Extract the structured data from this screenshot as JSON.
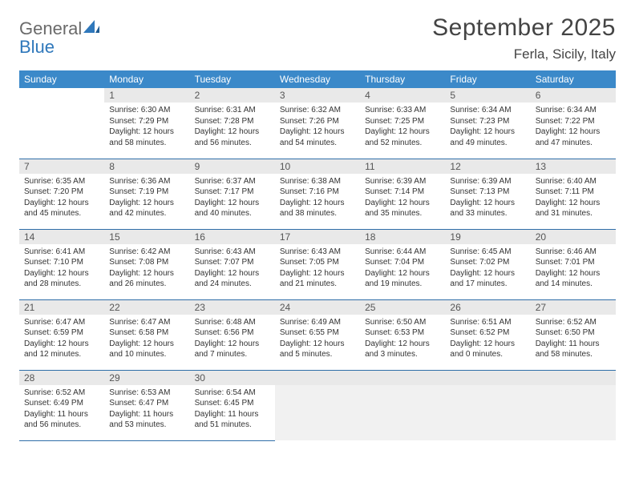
{
  "brand": {
    "part1": "General",
    "part2": "Blue"
  },
  "title": "September 2025",
  "location": "Ferla, Sicily, Italy",
  "colors": {
    "header_bg": "#3b89c9",
    "header_text": "#ffffff",
    "daynum_bg": "#e9e9e9",
    "rule": "#2f6ea8",
    "logo_gray": "#6a6a6a",
    "logo_blue": "#2f78bb"
  },
  "dow": [
    "Sunday",
    "Monday",
    "Tuesday",
    "Wednesday",
    "Thursday",
    "Friday",
    "Saturday"
  ],
  "weeks": [
    [
      null,
      {
        "n": "1",
        "sr": "Sunrise: 6:30 AM",
        "ss": "Sunset: 7:29 PM",
        "dl": "Daylight: 12 hours and 58 minutes."
      },
      {
        "n": "2",
        "sr": "Sunrise: 6:31 AM",
        "ss": "Sunset: 7:28 PM",
        "dl": "Daylight: 12 hours and 56 minutes."
      },
      {
        "n": "3",
        "sr": "Sunrise: 6:32 AM",
        "ss": "Sunset: 7:26 PM",
        "dl": "Daylight: 12 hours and 54 minutes."
      },
      {
        "n": "4",
        "sr": "Sunrise: 6:33 AM",
        "ss": "Sunset: 7:25 PM",
        "dl": "Daylight: 12 hours and 52 minutes."
      },
      {
        "n": "5",
        "sr": "Sunrise: 6:34 AM",
        "ss": "Sunset: 7:23 PM",
        "dl": "Daylight: 12 hours and 49 minutes."
      },
      {
        "n": "6",
        "sr": "Sunrise: 6:34 AM",
        "ss": "Sunset: 7:22 PM",
        "dl": "Daylight: 12 hours and 47 minutes."
      }
    ],
    [
      {
        "n": "7",
        "sr": "Sunrise: 6:35 AM",
        "ss": "Sunset: 7:20 PM",
        "dl": "Daylight: 12 hours and 45 minutes."
      },
      {
        "n": "8",
        "sr": "Sunrise: 6:36 AM",
        "ss": "Sunset: 7:19 PM",
        "dl": "Daylight: 12 hours and 42 minutes."
      },
      {
        "n": "9",
        "sr": "Sunrise: 6:37 AM",
        "ss": "Sunset: 7:17 PM",
        "dl": "Daylight: 12 hours and 40 minutes."
      },
      {
        "n": "10",
        "sr": "Sunrise: 6:38 AM",
        "ss": "Sunset: 7:16 PM",
        "dl": "Daylight: 12 hours and 38 minutes."
      },
      {
        "n": "11",
        "sr": "Sunrise: 6:39 AM",
        "ss": "Sunset: 7:14 PM",
        "dl": "Daylight: 12 hours and 35 minutes."
      },
      {
        "n": "12",
        "sr": "Sunrise: 6:39 AM",
        "ss": "Sunset: 7:13 PM",
        "dl": "Daylight: 12 hours and 33 minutes."
      },
      {
        "n": "13",
        "sr": "Sunrise: 6:40 AM",
        "ss": "Sunset: 7:11 PM",
        "dl": "Daylight: 12 hours and 31 minutes."
      }
    ],
    [
      {
        "n": "14",
        "sr": "Sunrise: 6:41 AM",
        "ss": "Sunset: 7:10 PM",
        "dl": "Daylight: 12 hours and 28 minutes."
      },
      {
        "n": "15",
        "sr": "Sunrise: 6:42 AM",
        "ss": "Sunset: 7:08 PM",
        "dl": "Daylight: 12 hours and 26 minutes."
      },
      {
        "n": "16",
        "sr": "Sunrise: 6:43 AM",
        "ss": "Sunset: 7:07 PM",
        "dl": "Daylight: 12 hours and 24 minutes."
      },
      {
        "n": "17",
        "sr": "Sunrise: 6:43 AM",
        "ss": "Sunset: 7:05 PM",
        "dl": "Daylight: 12 hours and 21 minutes."
      },
      {
        "n": "18",
        "sr": "Sunrise: 6:44 AM",
        "ss": "Sunset: 7:04 PM",
        "dl": "Daylight: 12 hours and 19 minutes."
      },
      {
        "n": "19",
        "sr": "Sunrise: 6:45 AM",
        "ss": "Sunset: 7:02 PM",
        "dl": "Daylight: 12 hours and 17 minutes."
      },
      {
        "n": "20",
        "sr": "Sunrise: 6:46 AM",
        "ss": "Sunset: 7:01 PM",
        "dl": "Daylight: 12 hours and 14 minutes."
      }
    ],
    [
      {
        "n": "21",
        "sr": "Sunrise: 6:47 AM",
        "ss": "Sunset: 6:59 PM",
        "dl": "Daylight: 12 hours and 12 minutes."
      },
      {
        "n": "22",
        "sr": "Sunrise: 6:47 AM",
        "ss": "Sunset: 6:58 PM",
        "dl": "Daylight: 12 hours and 10 minutes."
      },
      {
        "n": "23",
        "sr": "Sunrise: 6:48 AM",
        "ss": "Sunset: 6:56 PM",
        "dl": "Daylight: 12 hours and 7 minutes."
      },
      {
        "n": "24",
        "sr": "Sunrise: 6:49 AM",
        "ss": "Sunset: 6:55 PM",
        "dl": "Daylight: 12 hours and 5 minutes."
      },
      {
        "n": "25",
        "sr": "Sunrise: 6:50 AM",
        "ss": "Sunset: 6:53 PM",
        "dl": "Daylight: 12 hours and 3 minutes."
      },
      {
        "n": "26",
        "sr": "Sunrise: 6:51 AM",
        "ss": "Sunset: 6:52 PM",
        "dl": "Daylight: 12 hours and 0 minutes."
      },
      {
        "n": "27",
        "sr": "Sunrise: 6:52 AM",
        "ss": "Sunset: 6:50 PM",
        "dl": "Daylight: 11 hours and 58 minutes."
      }
    ],
    [
      {
        "n": "28",
        "sr": "Sunrise: 6:52 AM",
        "ss": "Sunset: 6:49 PM",
        "dl": "Daylight: 11 hours and 56 minutes."
      },
      {
        "n": "29",
        "sr": "Sunrise: 6:53 AM",
        "ss": "Sunset: 6:47 PM",
        "dl": "Daylight: 11 hours and 53 minutes."
      },
      {
        "n": "30",
        "sr": "Sunrise: 6:54 AM",
        "ss": "Sunset: 6:45 PM",
        "dl": "Daylight: 11 hours and 51 minutes."
      },
      "blank",
      "blank",
      "blank",
      "blank"
    ]
  ]
}
